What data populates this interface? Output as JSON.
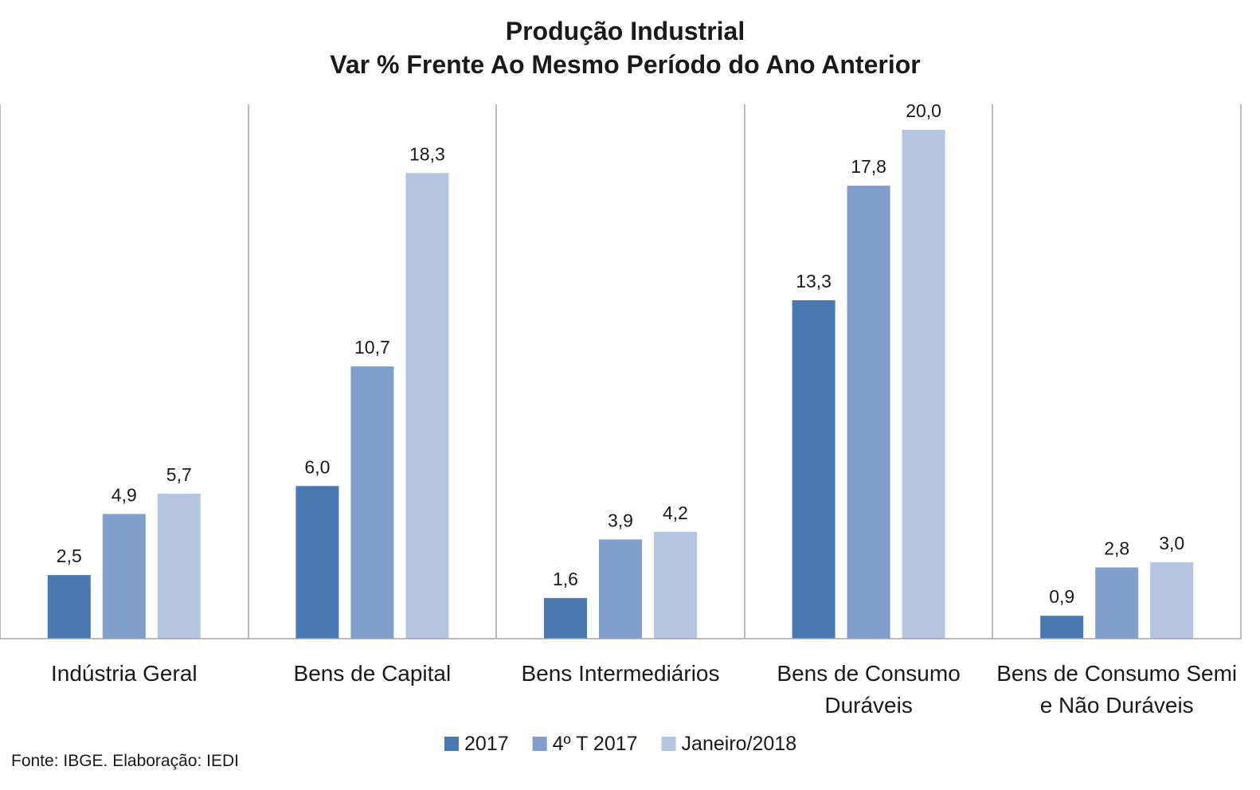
{
  "chart_data": {
    "type": "bar",
    "title": [
      "Produção Industrial",
      "Var % Frente Ao Mesmo Período do Ano Anterior"
    ],
    "categories": [
      [
        "Indústria Geral"
      ],
      [
        "Bens de Capital"
      ],
      [
        "Bens Intermediários"
      ],
      [
        "Bens de Consumo",
        "Duráveis"
      ],
      [
        "Bens de Consumo Semi",
        "e Não Duráveis"
      ]
    ],
    "series": [
      {
        "name": "2017",
        "color": "#4a78b0",
        "values": [
          2.5,
          6.0,
          1.6,
          13.3,
          0.9
        ],
        "labels": [
          "2,5",
          "6,0",
          "1,6",
          "13,3",
          "0,9"
        ]
      },
      {
        "name": "4º T 2017",
        "color": "#819fcb",
        "values": [
          4.9,
          10.7,
          3.9,
          17.8,
          2.8
        ],
        "labels": [
          "4,9",
          "10,7",
          "3,9",
          "17,8",
          "2,8"
        ]
      },
      {
        "name": "Janeiro/2018",
        "color": "#b5c4df",
        "values": [
          5.7,
          18.3,
          4.2,
          20.0,
          3.0
        ],
        "labels": [
          "5,7",
          "18,3",
          "4,2",
          "20,0",
          "3,0"
        ]
      }
    ],
    "ylim": [
      0,
      21
    ],
    "grid": false,
    "legend": "bottom-center",
    "source": "Fonte: IBGE. Elaboração: IEDI"
  }
}
